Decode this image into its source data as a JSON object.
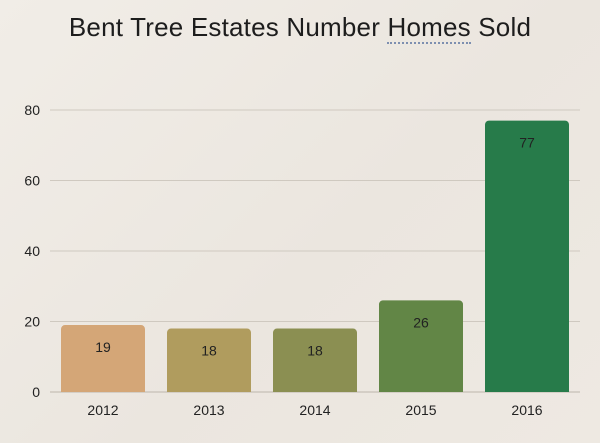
{
  "chart_data": {
    "type": "bar",
    "title_parts": {
      "before": "Bent Tree Estates Number ",
      "highlight": "Homes",
      "after": " Sold"
    },
    "categories": [
      "2012",
      "2013",
      "2014",
      "2015",
      "2016"
    ],
    "values": [
      19,
      18,
      18,
      26,
      77
    ],
    "bar_colors": [
      "#d4a677",
      "#b09c5e",
      "#8b8f52",
      "#628646",
      "#277b4a"
    ],
    "ylim": [
      0,
      80
    ],
    "yticks": [
      "0",
      "20",
      "40",
      "60",
      "80"
    ],
    "grid": true,
    "legend": "none"
  }
}
